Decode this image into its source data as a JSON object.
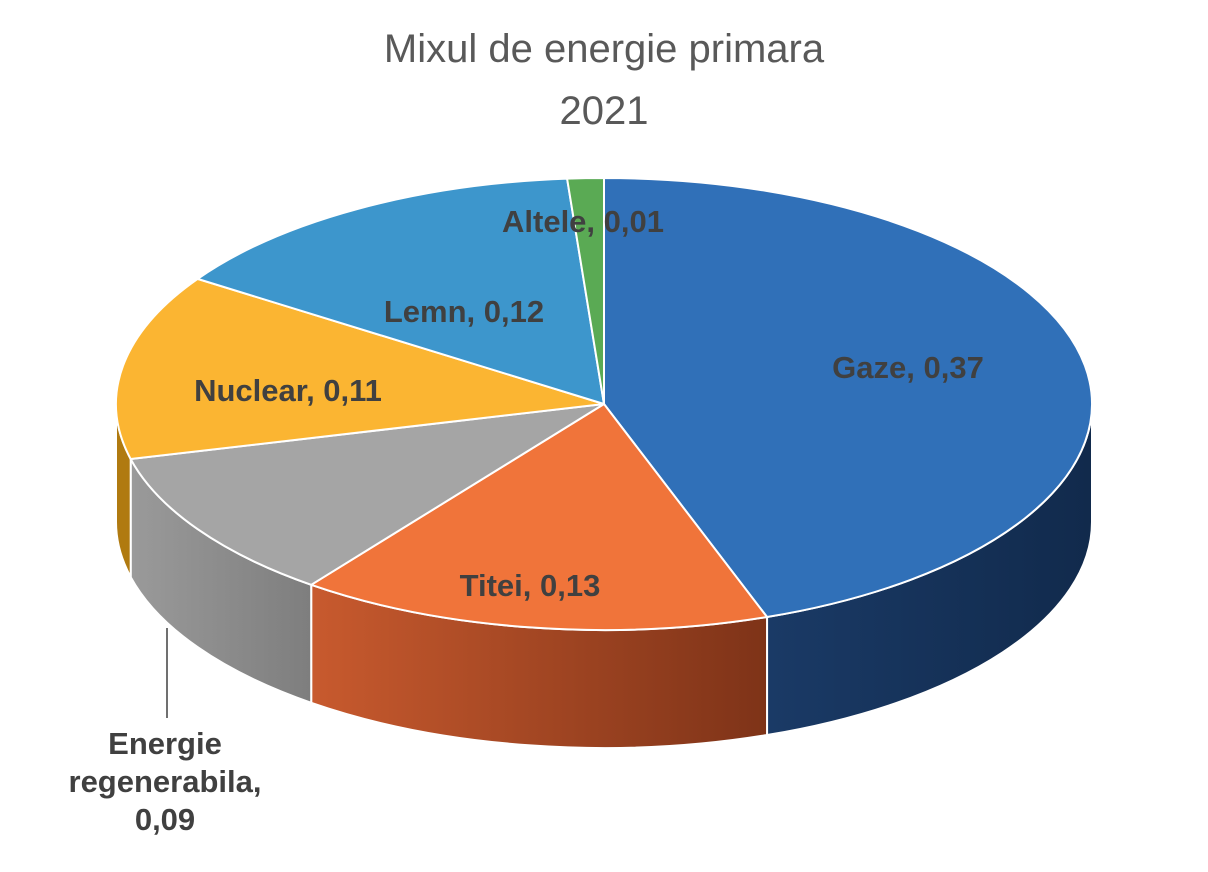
{
  "chart_data": {
    "type": "pie",
    "title_lines": [
      "Mixul de energie primara",
      "2021"
    ],
    "categories": [
      "Gaze",
      "Titei",
      "Energie regenerabila",
      "Nuclear",
      "Lemn",
      "Altele"
    ],
    "values": [
      0.37,
      0.13,
      0.09,
      0.11,
      0.12,
      0.01
    ],
    "labels": [
      [
        "Gaze, 0,37"
      ],
      [
        "Titei, 0,13"
      ],
      [
        "Energie",
        "regenerabila,",
        "0,09"
      ],
      [
        "Nuclear, 0,11"
      ],
      [
        "Lemn, 0,12"
      ],
      [
        "Altele, 0,01"
      ]
    ],
    "colors": [
      "#3070B8",
      "#F0743A",
      "#A5A5A5",
      "#FBB532",
      "#3D96CC",
      "#5AAA54"
    ],
    "side_colors": [
      "#15305A",
      "#8C3A17",
      "#8A8A8A",
      "#B07A10",
      "#1F5C82",
      "#2E6B2B"
    ],
    "style": "3d-pie",
    "legend": "none"
  }
}
